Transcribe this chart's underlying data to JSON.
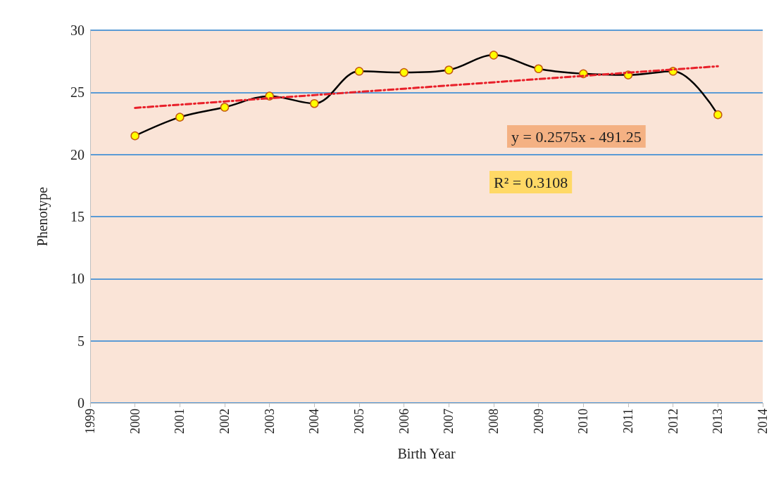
{
  "chart_data": {
    "type": "line",
    "xlabel": "Birth Year",
    "ylabel": "Phenotype",
    "xlim": [
      1999,
      2014
    ],
    "xticks": [
      1999,
      2000,
      2001,
      2002,
      2003,
      2004,
      2005,
      2006,
      2007,
      2008,
      2009,
      2010,
      2011,
      2012,
      2013,
      2014
    ],
    "ylim": [
      0,
      30
    ],
    "yticks": [
      0,
      5,
      10,
      15,
      20,
      25,
      30
    ],
    "grid": "y",
    "marker": "circle",
    "line_style": "solid",
    "series": [
      {
        "color": "#000000",
        "x": [
          2000,
          2001,
          2002,
          2003,
          2004,
          2005,
          2006,
          2007,
          2008,
          2009,
          2010,
          2011,
          2012,
          2013
        ],
        "values": [
          21.5,
          23.0,
          23.8,
          24.7,
          24.1,
          26.7,
          26.6,
          26.8,
          28.0,
          26.9,
          26.5,
          26.4,
          26.7,
          23.2
        ]
      },
      {
        "type": "line",
        "color": "#e8202a",
        "marker": "none",
        "line_style": "dashed",
        "x": [
          2000,
          2013
        ],
        "values": [
          23.75,
          27.1
        ]
      }
    ],
    "annotations": [
      "y = 0.2575x - 491.25",
      "R² = 0.3108"
    ]
  }
}
